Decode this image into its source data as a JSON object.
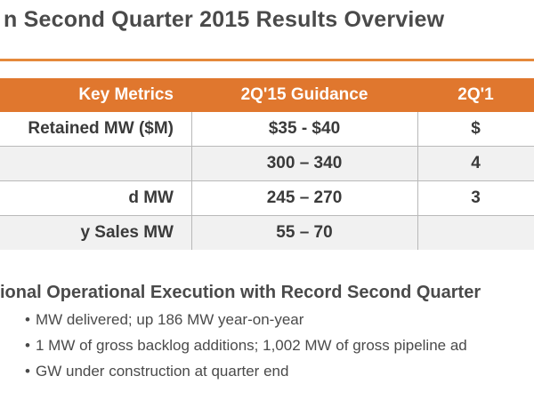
{
  "title": "n Second Quarter 2015 Results Overview",
  "table": {
    "headers": [
      "Key Metrics",
      "2Q'15 Guidance",
      "2Q'1"
    ],
    "rows": [
      {
        "metric": "Retained MW ($M)",
        "guidance": "$35 - $40",
        "actual": "$"
      },
      {
        "metric": "",
        "guidance": "300 – 340",
        "actual": "4"
      },
      {
        "metric": "d MW",
        "guidance": "245 – 270",
        "actual": "3"
      },
      {
        "metric": "y Sales MW",
        "guidance": "55 – 70",
        "actual": ""
      }
    ]
  },
  "highlights": {
    "title": "ional Operational Execution with Record Second Quarter",
    "bullets": [
      "MW delivered; up 186 MW year-on-year",
      "1 MW of gross backlog additions; 1,002 MW of gross pipeline ad",
      "GW under construction at quarter end"
    ]
  },
  "colors": {
    "accent": "#e0772e",
    "rule": "#e5893c"
  }
}
